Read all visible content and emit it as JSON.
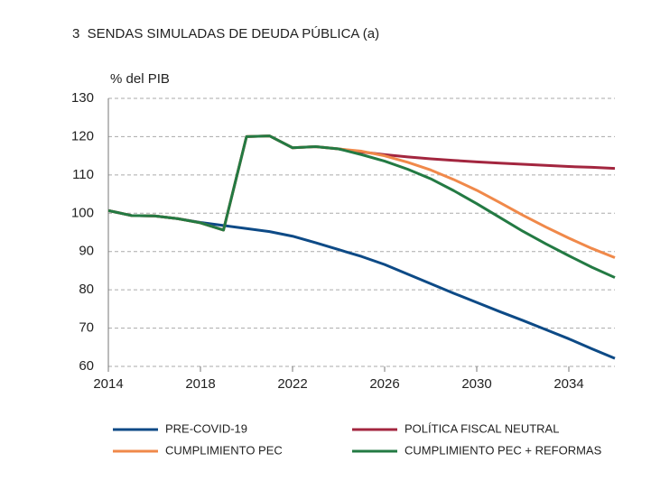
{
  "chart_data": {
    "type": "line",
    "title": "3  SENDAS SIMULADAS DE DEUDA PÚBLICA (a)",
    "y_label": "% del PIB",
    "x": [
      2014,
      2015,
      2016,
      2017,
      2018,
      2019,
      2020,
      2021,
      2022,
      2023,
      2024,
      2025,
      2026,
      2027,
      2028,
      2029,
      2030,
      2031,
      2032,
      2033,
      2034,
      2035,
      2036
    ],
    "series": [
      {
        "name": "PRE-COVID-19",
        "color": "#0d4a86",
        "values": [
          100.7,
          99.4,
          99.3,
          98.6,
          97.6,
          96.8,
          96.0,
          95.2,
          94.0,
          92.3,
          90.5,
          88.7,
          86.6,
          84.1,
          81.6,
          79.1,
          76.7,
          74.3,
          72.0,
          69.6,
          67.2,
          64.6,
          62.1
        ]
      },
      {
        "name": "POLÍTICA FISCAL NEUTRAL",
        "color": "#a3263f",
        "values": [
          100.7,
          99.4,
          99.3,
          98.6,
          97.5,
          95.6,
          120.0,
          120.2,
          117.1,
          117.4,
          116.8,
          116.0,
          115.3,
          114.7,
          114.2,
          113.8,
          113.4,
          113.1,
          112.8,
          112.5,
          112.2,
          112.0,
          111.7
        ]
      },
      {
        "name": "CUMPLIMIENTO PEC",
        "color": "#f0894a",
        "values": [
          100.7,
          99.4,
          99.3,
          98.6,
          97.5,
          95.6,
          120.0,
          120.2,
          117.1,
          117.4,
          116.8,
          116.2,
          115.0,
          113.3,
          111.3,
          108.8,
          106.0,
          102.8,
          99.5,
          96.4,
          93.5,
          90.8,
          88.4
        ]
      },
      {
        "name": "CUMPLIMIENTO PEC + REFORMAS",
        "color": "#237a43",
        "values": [
          100.7,
          99.4,
          99.3,
          98.6,
          97.5,
          95.6,
          120.0,
          120.2,
          117.1,
          117.4,
          116.8,
          115.3,
          113.6,
          111.5,
          109.0,
          105.9,
          102.5,
          98.9,
          95.3,
          92.0,
          88.9,
          85.9,
          83.2
        ]
      }
    ],
    "xlim": [
      2014,
      2036
    ],
    "xticks": [
      2014,
      2018,
      2022,
      2026,
      2030,
      2034
    ],
    "ylim": [
      60,
      130
    ],
    "yticks": [
      60,
      70,
      80,
      90,
      100,
      110,
      120,
      130
    ],
    "grid": true
  }
}
